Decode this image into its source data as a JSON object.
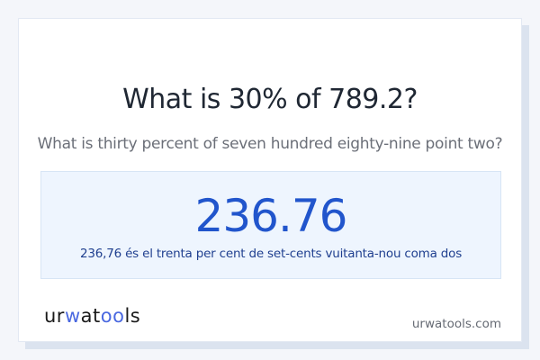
{
  "title": "What is 30% of 789.2?",
  "subtitle": "What is thirty percent of seven hundred eighty-nine point two?",
  "result": {
    "value": "236.76",
    "words": "236,76 és el trenta per cent de set-cents vuitanta-nou coma dos"
  },
  "footer": {
    "logo_text": "urwatools",
    "site": "urwatools.com"
  },
  "colors": {
    "accent": "#2155cc",
    "result_bg": "#eef5fe",
    "logo_accent": "#4a68e0"
  }
}
